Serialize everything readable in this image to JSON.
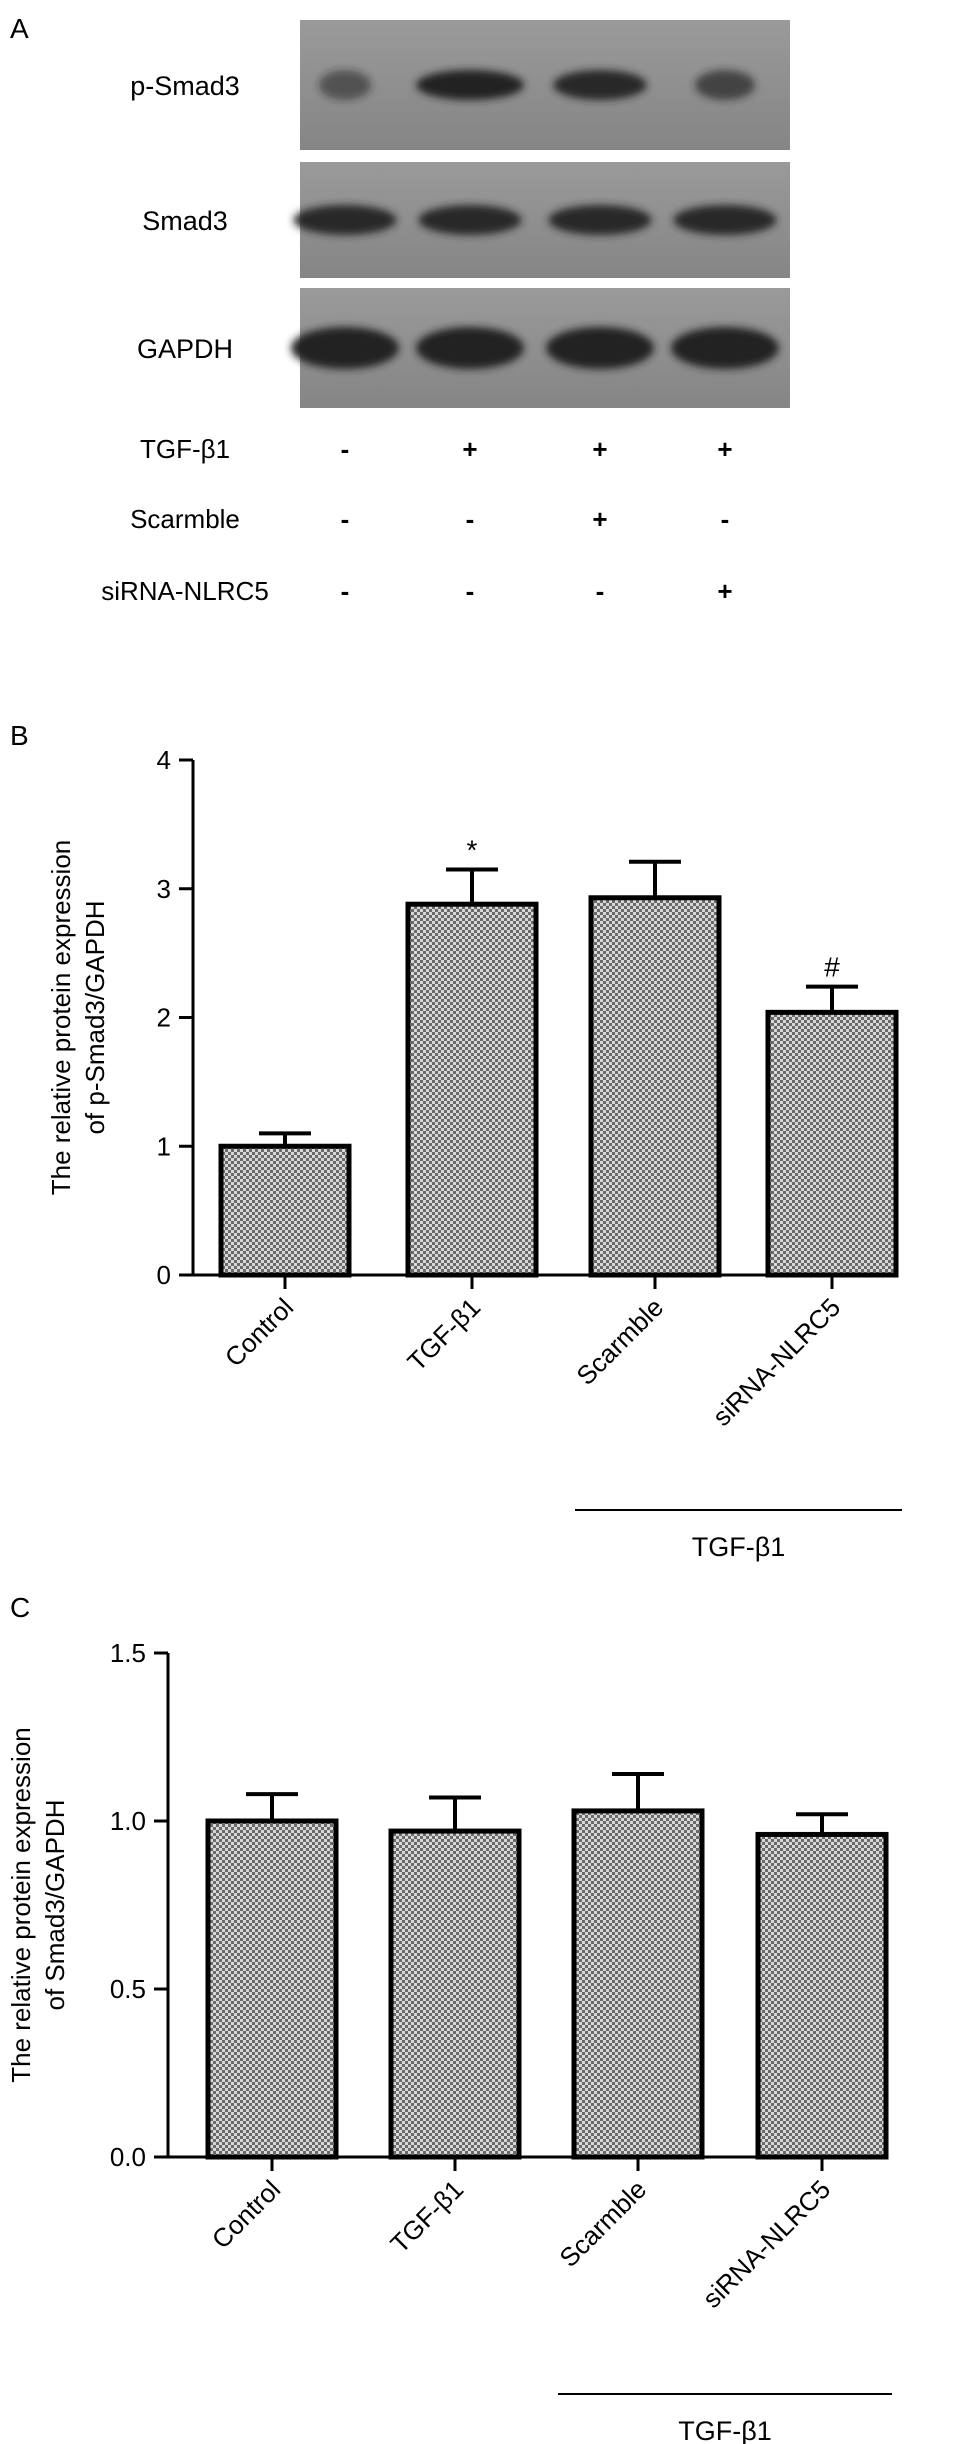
{
  "panel_labels": {
    "a": "A",
    "b": "B",
    "c": "C"
  },
  "blot": {
    "rows": [
      "p-Smad3",
      "Smad3",
      "GAPDH"
    ],
    "conditions": [
      {
        "label": "TGF-β1",
        "marks": [
          "-",
          "+",
          "+",
          "+"
        ]
      },
      {
        "label": "Scarmble",
        "marks": [
          "-",
          "-",
          "+",
          "-"
        ]
      },
      {
        "label": "siRNA-NLRC5",
        "marks": [
          "-",
          "-",
          "-",
          "+"
        ]
      }
    ]
  },
  "chart_data": [
    {
      "type": "bar",
      "panel": "B",
      "categories": [
        "Control",
        "TGF-β1",
        "Scarmble",
        "siRNA-NLRC5"
      ],
      "values": [
        1.0,
        2.88,
        2.93,
        2.04
      ],
      "errors": [
        0.1,
        0.27,
        0.28,
        0.2
      ],
      "annotations": [
        "",
        "*",
        "",
        "#"
      ],
      "ylabel_lines": [
        "The relative protein expression",
        "of p-Smad3/GAPDH"
      ],
      "ylim": [
        0,
        4
      ],
      "yticks": [
        "0",
        "1",
        "2",
        "3",
        "4"
      ],
      "group_label": "TGF-β1",
      "group_categories": [
        "Scarmble",
        "siRNA-NLRC5"
      ],
      "grid": false,
      "bar_fill": "crosshatch"
    },
    {
      "type": "bar",
      "panel": "C",
      "categories": [
        "Control",
        "TGF-β1",
        "Scarmble",
        "siRNA-NLRC5"
      ],
      "values": [
        1.0,
        0.97,
        1.03,
        0.96
      ],
      "errors": [
        0.08,
        0.1,
        0.11,
        0.06
      ],
      "annotations": [
        "",
        "",
        "",
        ""
      ],
      "ylabel_lines": [
        "The relative protein expression",
        "of Smad3/GAPDH"
      ],
      "ylim": [
        0,
        1.5
      ],
      "yticks": [
        "0.0",
        "0.5",
        "1.0",
        "1.5"
      ],
      "group_label": "TGF-β1",
      "group_categories": [
        "Scarmble",
        "siRNA-NLRC5"
      ],
      "grid": false,
      "bar_fill": "crosshatch"
    }
  ],
  "colors": {
    "ink": "#000000",
    "blot_bg": "#8e8e8e",
    "band": "#232323"
  }
}
